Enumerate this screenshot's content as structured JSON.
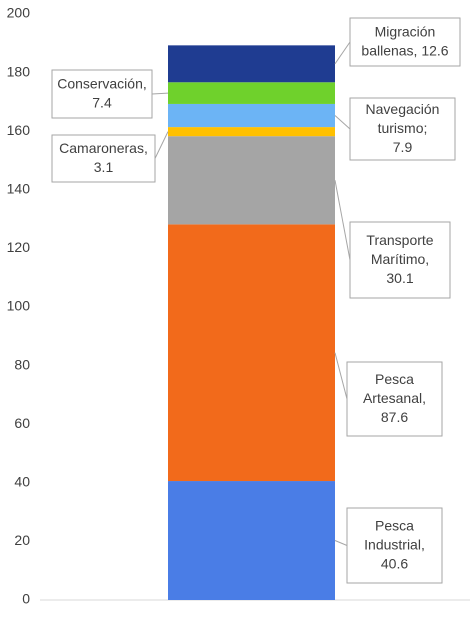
{
  "chart_data": {
    "type": "bar",
    "stacked": true,
    "categories": [
      null
    ],
    "series": [
      {
        "color": "#4a7de6",
        "values": [
          40.6
        ],
        "value_labels": [
          "Pesca\nIndustrial,\n40.6"
        ]
      },
      {
        "color": "#f26a1b",
        "values": [
          87.6
        ],
        "value_labels": [
          "Pesca\nArtesanal,\n87.6"
        ]
      },
      {
        "color": "#a5a5a5",
        "values": [
          30.1
        ],
        "value_labels": [
          "Transporte\nMarítimo,\n30.1"
        ]
      },
      {
        "color": "#ffc000",
        "values": [
          3.1
        ],
        "value_labels": [
          "Camaroneras,\n3.1"
        ]
      },
      {
        "color": "#6cb4f5",
        "values": [
          7.9
        ],
        "value_labels": [
          "Navegación\nturismo;\n7.9"
        ]
      },
      {
        "color": "#6fd12c",
        "values": [
          7.4
        ],
        "value_labels": [
          "Conservación,\n7.4"
        ]
      },
      {
        "color": "#1f3c91",
        "values": [
          12.6
        ],
        "value_labels": [
          "Migración\nballenas, 12.6"
        ]
      }
    ],
    "ylim": [
      0,
      200
    ],
    "yticks": [
      0,
      20,
      40,
      60,
      80,
      100,
      120,
      140,
      160,
      180,
      200
    ],
    "grid": false
  }
}
